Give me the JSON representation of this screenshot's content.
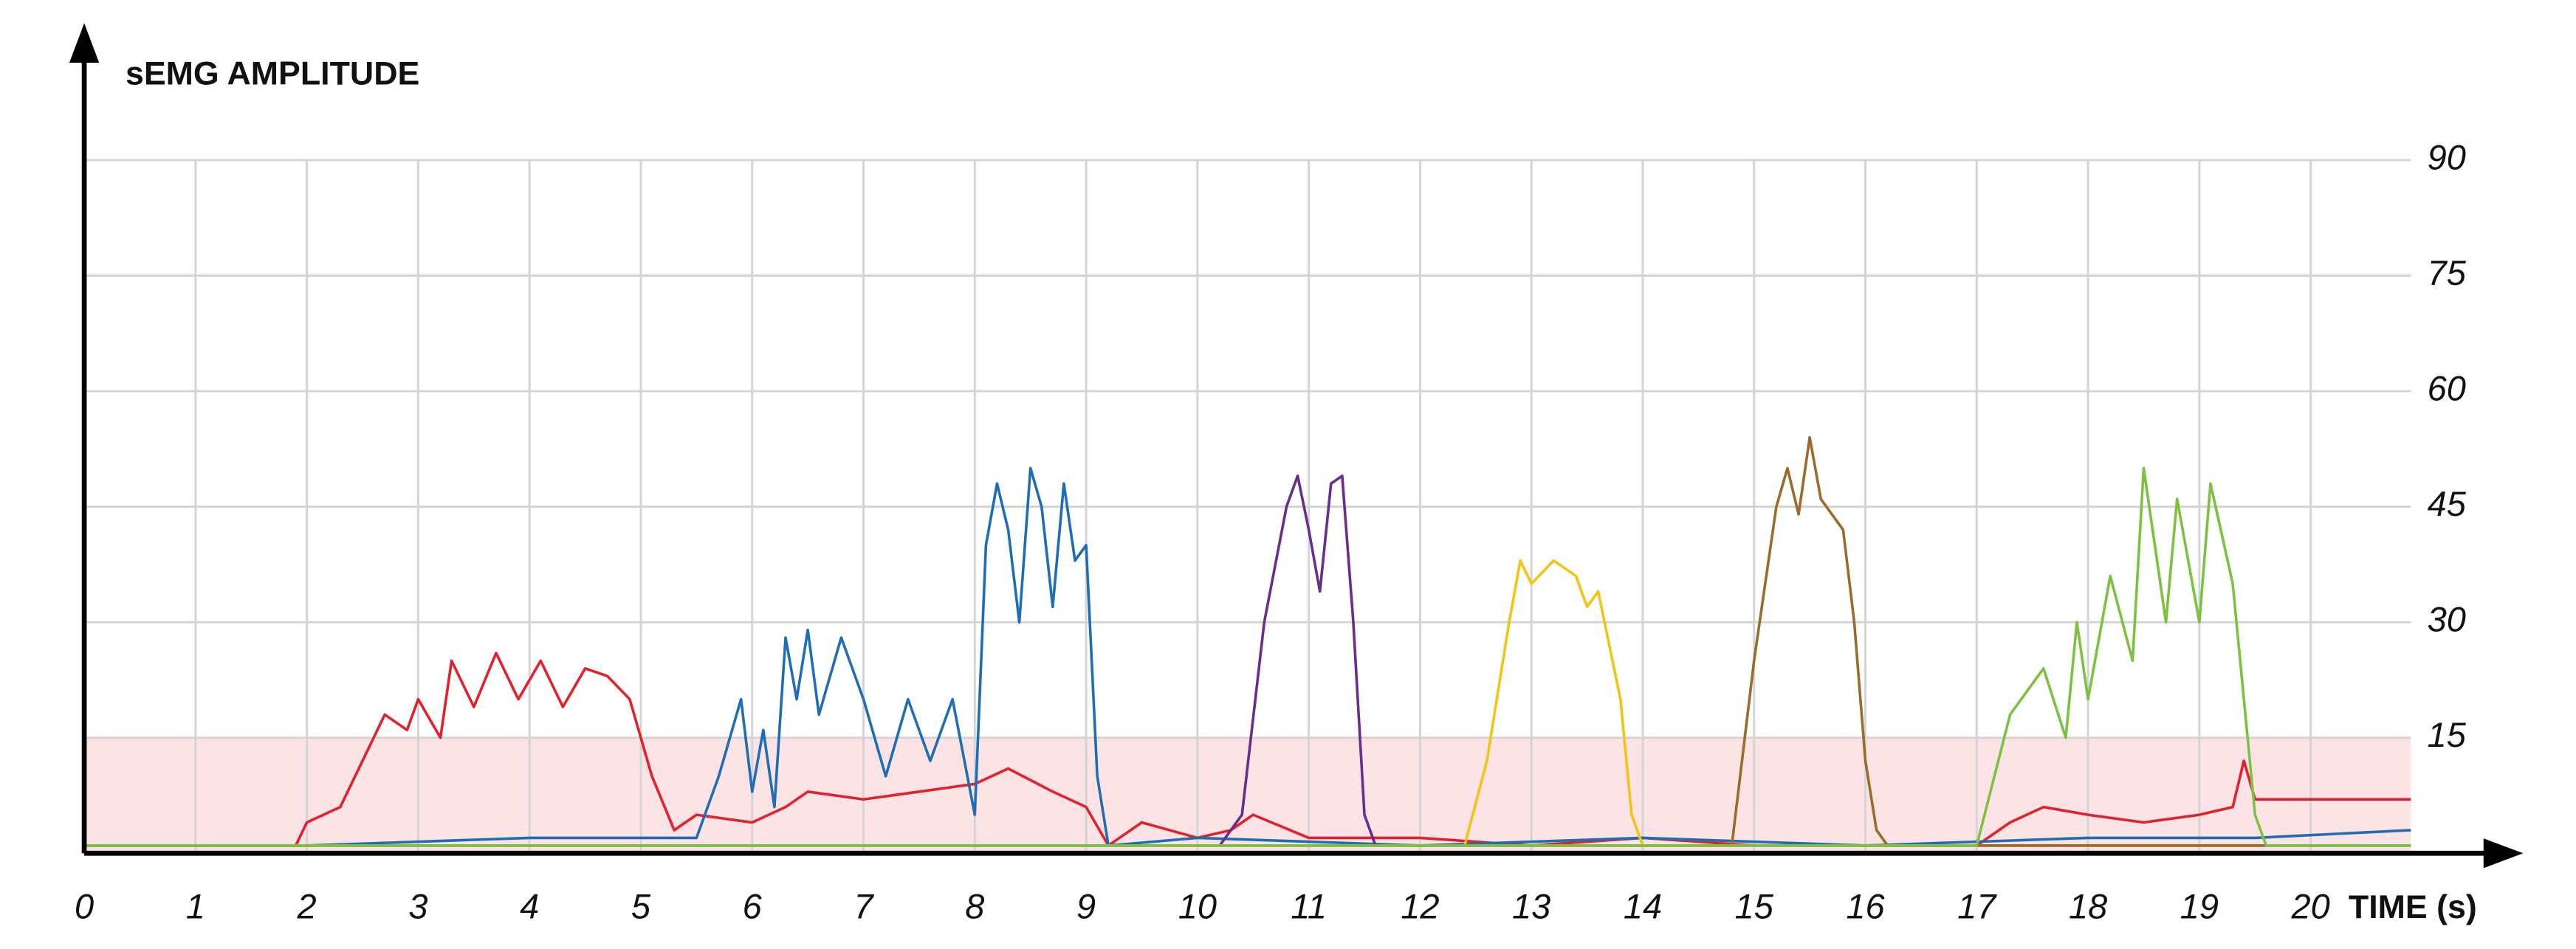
{
  "chart_data": {
    "type": "line",
    "title": "sEMG AMPLITUDE",
    "x_label": "TIME (s)",
    "xlim": [
      0,
      20.9
    ],
    "ylim": [
      0,
      90
    ],
    "xticks": [
      0,
      1,
      2,
      3,
      4,
      5,
      6,
      7,
      8,
      9,
      10,
      11,
      12,
      13,
      14,
      15,
      16,
      17,
      18,
      19,
      20
    ],
    "yticks": [
      15,
      30,
      45,
      60,
      75,
      90
    ],
    "grid": true,
    "shaded_band": {
      "from": 0,
      "to": 15,
      "color": "#fbe3e6"
    },
    "series": [
      {
        "color": "#e3212b",
        "x": [
          0,
          1,
          1.9,
          2.0,
          2.3,
          2.5,
          2.7,
          2.9,
          3.0,
          3.2,
          3.3,
          3.5,
          3.7,
          3.9,
          4.1,
          4.3,
          4.5,
          4.7,
          4.9,
          5.1,
          5.3,
          5.5,
          6,
          6.3,
          6.5,
          7,
          7.5,
          8,
          8.3,
          8.7,
          9,
          9.2,
          9.5,
          10,
          10.3,
          10.5,
          11,
          12,
          13,
          14,
          15,
          16,
          17,
          17.3,
          17.6,
          18,
          18.5,
          19,
          19.3,
          19.4,
          19.5,
          20,
          20.9
        ],
        "values": [
          1,
          1,
          1,
          4,
          6,
          12,
          18,
          16,
          20,
          15,
          25,
          19,
          26,
          20,
          25,
          19,
          24,
          23,
          20,
          10,
          3,
          5,
          4,
          6,
          8,
          7,
          8,
          9,
          11,
          8,
          6,
          1,
          4,
          2,
          3,
          5,
          2,
          2,
          1,
          2,
          1,
          1,
          1,
          4,
          6,
          5,
          4,
          5,
          6,
          12,
          7,
          7,
          7
        ]
      },
      {
        "color": "#1f6db5",
        "x": [
          0,
          2,
          4,
          5.5,
          5.7,
          5.9,
          6.0,
          6.1,
          6.2,
          6.3,
          6.4,
          6.5,
          6.6,
          6.8,
          7.0,
          7.2,
          7.4,
          7.6,
          7.8,
          8.0,
          8.1,
          8.2,
          8.3,
          8.4,
          8.5,
          8.6,
          8.7,
          8.8,
          8.9,
          9.0,
          9.1,
          9.2,
          10,
          12,
          14,
          16,
          18,
          19.5,
          20.9
        ],
        "values": [
          1,
          1,
          2,
          2,
          10,
          20,
          8,
          16,
          6,
          28,
          20,
          29,
          18,
          28,
          20,
          10,
          20,
          12,
          20,
          5,
          40,
          48,
          42,
          30,
          50,
          45,
          32,
          48,
          38,
          40,
          10,
          1,
          2,
          1,
          2,
          1,
          2,
          2,
          3
        ]
      },
      {
        "color": "#6a2d8f",
        "x": [
          0,
          10.2,
          10.4,
          10.6,
          10.8,
          10.9,
          11.0,
          11.1,
          11.2,
          11.3,
          11.4,
          11.5,
          11.6,
          20.9
        ],
        "values": [
          1,
          1,
          5,
          30,
          45,
          49,
          42,
          34,
          48,
          49,
          30,
          5,
          1,
          1
        ]
      },
      {
        "color": "#f5c314",
        "x": [
          0,
          12.4,
          12.6,
          12.8,
          12.9,
          13.0,
          13.2,
          13.4,
          13.5,
          13.6,
          13.8,
          13.9,
          14.0,
          20.9
        ],
        "values": [
          1,
          1,
          12,
          30,
          38,
          35,
          38,
          36,
          32,
          34,
          20,
          5,
          1,
          1
        ]
      },
      {
        "color": "#9c6a2b",
        "x": [
          0,
          14.8,
          15.0,
          15.2,
          15.3,
          15.4,
          15.5,
          15.6,
          15.8,
          15.9,
          16.0,
          16.1,
          16.2,
          20.9
        ],
        "values": [
          1,
          1,
          25,
          45,
          50,
          44,
          54,
          46,
          42,
          30,
          12,
          3,
          1,
          1
        ]
      },
      {
        "color": "#7dc142",
        "x": [
          0,
          17.0,
          17.3,
          17.6,
          17.8,
          17.9,
          18.0,
          18.2,
          18.4,
          18.5,
          18.7,
          18.8,
          19.0,
          19.1,
          19.3,
          19.4,
          19.5,
          19.6,
          20.9
        ],
        "values": [
          1,
          1,
          18,
          24,
          15,
          30,
          20,
          36,
          25,
          50,
          30,
          46,
          30,
          48,
          35,
          20,
          5,
          1,
          1
        ]
      }
    ]
  }
}
